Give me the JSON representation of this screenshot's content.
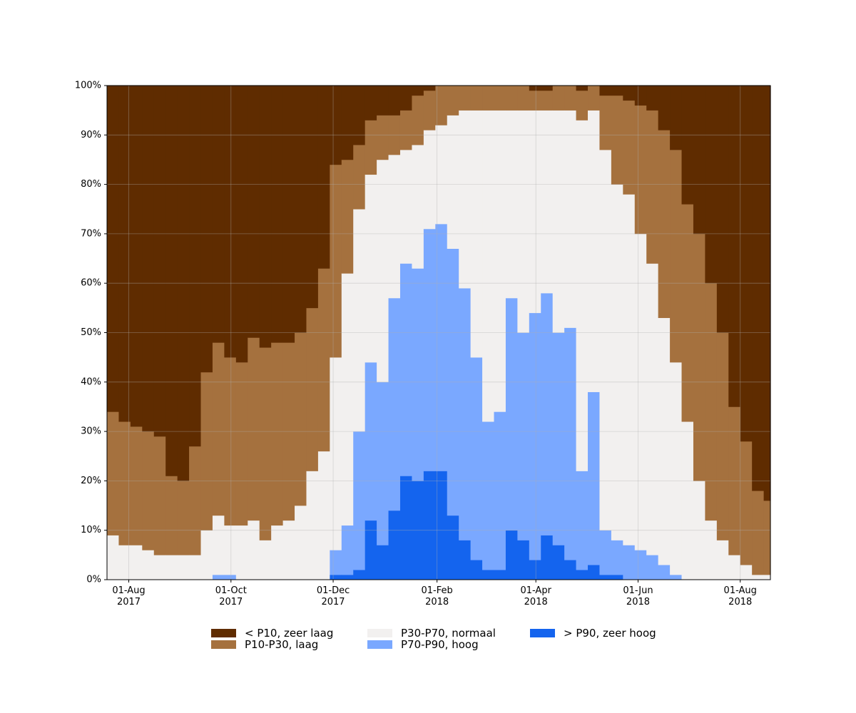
{
  "chart_data": {
    "type": "area",
    "step": true,
    "stacked": true,
    "xlim": [
      "2017-07-19",
      "2018-08-19"
    ],
    "ylim": [
      0,
      100
    ],
    "grid": true,
    "legend": "bottom",
    "yticks": [
      {
        "value": 0,
        "label": "0%"
      },
      {
        "value": 10,
        "label": "10%"
      },
      {
        "value": 20,
        "label": "20%"
      },
      {
        "value": 30,
        "label": "30%"
      },
      {
        "value": 40,
        "label": "40%"
      },
      {
        "value": 50,
        "label": "50%"
      },
      {
        "value": 60,
        "label": "60%"
      },
      {
        "value": 70,
        "label": "70%"
      },
      {
        "value": 80,
        "label": "80%"
      },
      {
        "value": 90,
        "label": "90%"
      },
      {
        "value": 100,
        "label": "100%"
      }
    ],
    "xticks": [
      {
        "value": "2017-08-01",
        "label": "01-Aug\n2017"
      },
      {
        "value": "2017-10-01",
        "label": "01-Oct\n2017"
      },
      {
        "value": "2017-12-01",
        "label": "01-Dec\n2017"
      },
      {
        "value": "2018-02-01",
        "label": "01-Feb\n2018"
      },
      {
        "value": "2018-04-01",
        "label": "01-Apr\n2018"
      },
      {
        "value": "2018-06-01",
        "label": "01-Jun\n2018"
      },
      {
        "value": "2018-08-01",
        "label": "01-Aug\n2018"
      }
    ],
    "x": [
      "2017-07-19",
      "2017-07-26",
      "2017-08-02",
      "2017-08-09",
      "2017-08-16",
      "2017-08-23",
      "2017-08-30",
      "2017-09-06",
      "2017-09-13",
      "2017-09-20",
      "2017-09-27",
      "2017-10-04",
      "2017-10-11",
      "2017-10-18",
      "2017-10-25",
      "2017-11-01",
      "2017-11-08",
      "2017-11-15",
      "2017-11-22",
      "2017-11-29",
      "2017-12-06",
      "2017-12-13",
      "2017-12-20",
      "2017-12-27",
      "2018-01-03",
      "2018-01-10",
      "2018-01-17",
      "2018-01-24",
      "2018-01-31",
      "2018-02-07",
      "2018-02-14",
      "2018-02-21",
      "2018-02-28",
      "2018-03-07",
      "2018-03-14",
      "2018-03-21",
      "2018-03-28",
      "2018-04-04",
      "2018-04-11",
      "2018-04-18",
      "2018-04-25",
      "2018-05-02",
      "2018-05-09",
      "2018-05-16",
      "2018-05-23",
      "2018-05-30",
      "2018-06-06",
      "2018-06-13",
      "2018-06-20",
      "2018-06-27",
      "2018-07-04",
      "2018-07-11",
      "2018-07-18",
      "2018-07-25",
      "2018-08-01",
      "2018-08-08",
      "2018-08-15"
    ],
    "series": [
      {
        "name": "< P10, zeer laag",
        "color": "#5f2c00",
        "values": [
          66,
          68,
          69,
          70,
          71,
          79,
          80,
          73,
          58,
          52,
          55,
          56,
          51,
          53,
          52,
          52,
          50,
          45,
          37,
          16,
          15,
          12,
          7,
          6,
          6,
          5,
          2,
          1,
          0,
          0,
          0,
          0,
          0,
          0,
          0,
          0,
          1,
          1,
          0,
          0,
          1,
          0,
          2,
          2,
          3,
          4,
          5,
          9,
          13,
          24,
          30,
          40,
          50,
          65,
          72,
          82,
          84
        ]
      },
      {
        "name": "P10-P30, laag",
        "color": "#a5713e",
        "values": [
          25,
          25,
          24,
          24,
          24,
          16,
          15,
          22,
          32,
          35,
          34,
          33,
          37,
          39,
          37,
          36,
          35,
          33,
          37,
          39,
          23,
          13,
          11,
          9,
          8,
          8,
          10,
          8,
          8,
          6,
          5,
          5,
          5,
          5,
          5,
          5,
          4,
          4,
          5,
          5,
          6,
          5,
          11,
          18,
          19,
          26,
          31,
          38,
          43,
          44,
          50,
          48,
          42,
          30,
          25,
          17,
          15
        ]
      },
      {
        "name": "P30-P70, normaal",
        "color": "#f2f0ef",
        "values": [
          9,
          7,
          7,
          6,
          5,
          5,
          5,
          5,
          10,
          12,
          10,
          11,
          12,
          8,
          11,
          12,
          15,
          22,
          26,
          39,
          51,
          45,
          38,
          45,
          29,
          23,
          25,
          20,
          20,
          27,
          36,
          50,
          63,
          61,
          38,
          45,
          41,
          37,
          45,
          44,
          71,
          57,
          77,
          72,
          71,
          64,
          59,
          50,
          43,
          32,
          20,
          12,
          8,
          5,
          3,
          1,
          1
        ]
      },
      {
        "name": "P70-P90, hoog",
        "color": "#7aa8ff",
        "values": [
          0,
          0,
          0,
          0,
          0,
          0,
          0,
          0,
          0,
          1,
          1,
          0,
          0,
          0,
          0,
          0,
          0,
          0,
          0,
          5,
          10,
          28,
          32,
          33,
          43,
          43,
          43,
          49,
          50,
          54,
          51,
          41,
          30,
          32,
          47,
          42,
          50,
          49,
          43,
          47,
          20,
          35,
          9,
          7,
          7,
          6,
          5,
          3,
          1,
          0,
          0,
          0,
          0,
          0,
          0,
          0,
          0
        ]
      },
      {
        "name": "> P90, zeer hoog",
        "color": "#1464ee",
        "values": [
          0,
          0,
          0,
          0,
          0,
          0,
          0,
          0,
          0,
          0,
          0,
          0,
          0,
          0,
          0,
          0,
          0,
          0,
          0,
          1,
          1,
          2,
          12,
          7,
          14,
          21,
          20,
          22,
          22,
          13,
          8,
          4,
          2,
          2,
          10,
          8,
          4,
          9,
          7,
          4,
          2,
          3,
          1,
          1,
          0,
          0,
          0,
          0,
          0,
          0,
          0,
          0,
          0,
          0,
          0,
          0,
          0
        ]
      }
    ]
  }
}
